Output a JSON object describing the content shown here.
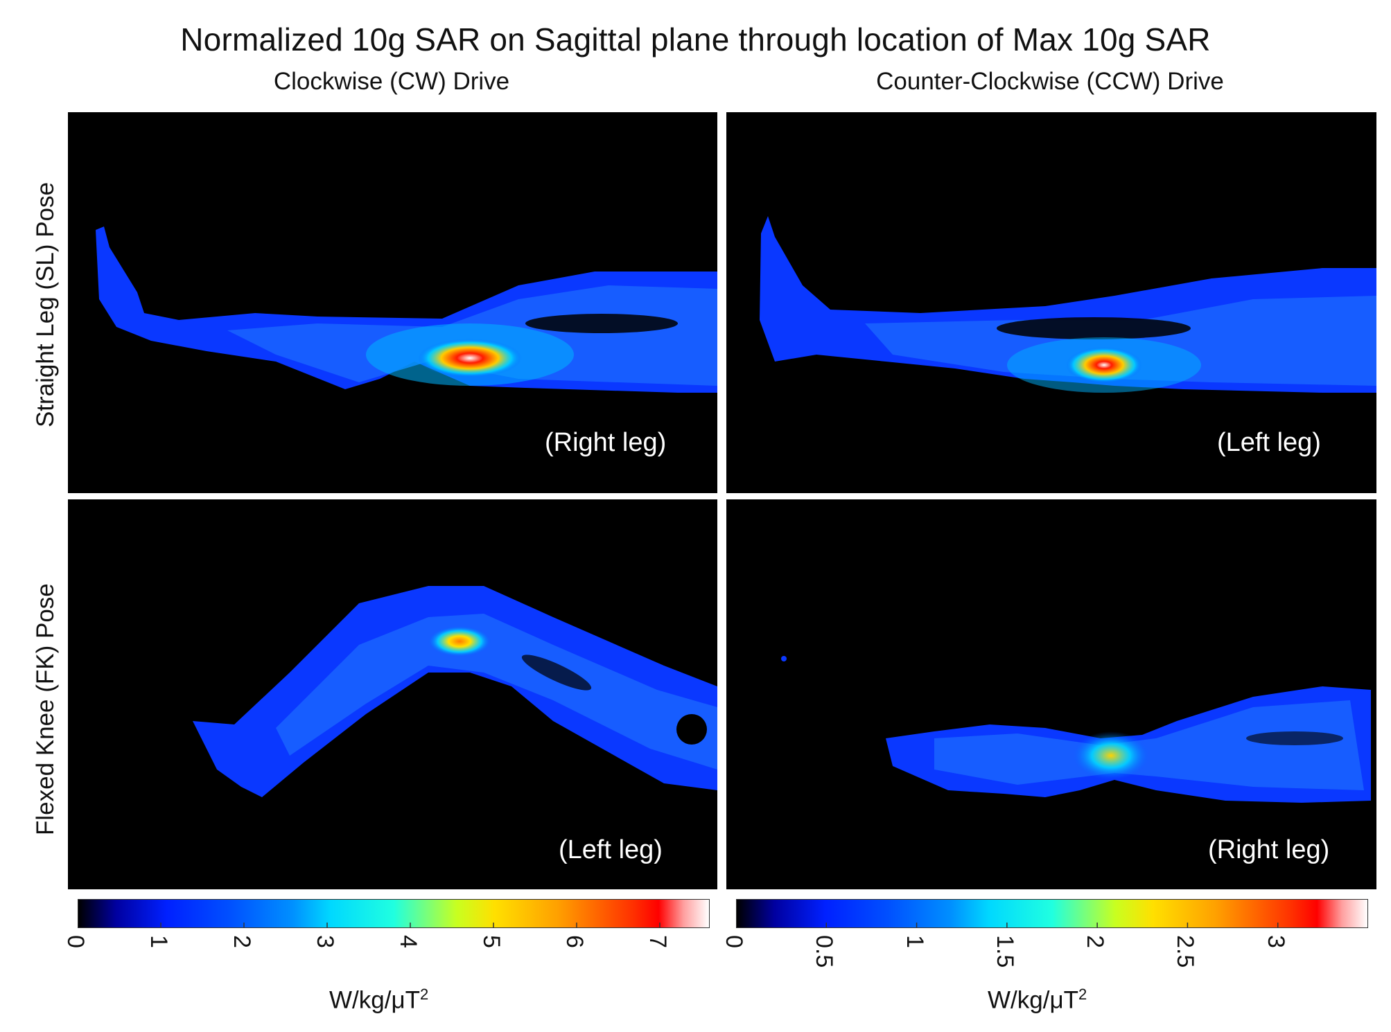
{
  "chart_data": {
    "type": "heatmap",
    "title": "Normalized 10g SAR on Sagittal plane through location of Max 10g SAR",
    "columns": [
      "Clockwise (CW) Drive",
      "Counter-Clockwise (CCW) Drive"
    ],
    "rows": [
      "Straight Leg (SL) Pose",
      "Flexed Knee (FK) Pose"
    ],
    "panels": [
      {
        "row": 0,
        "col": 0,
        "label": "(Right leg)"
      },
      {
        "row": 0,
        "col": 1,
        "label": "(Left leg)"
      },
      {
        "row": 1,
        "col": 0,
        "label": "(Left leg)"
      },
      {
        "row": 1,
        "col": 1,
        "label": "(Right leg)"
      }
    ],
    "colorbars": [
      {
        "column": 0,
        "unit": "W/kg/μT",
        "unit_exp": "2",
        "range": [
          0,
          7.6
        ],
        "ticks": [
          "0",
          "1",
          "2",
          "3",
          "4",
          "5",
          "6",
          "7"
        ],
        "tick_values": [
          0,
          1,
          2,
          3,
          4,
          5,
          6,
          7
        ]
      },
      {
        "column": 1,
        "unit": "W/kg/μT",
        "unit_exp": "2",
        "range": [
          0,
          3.5
        ],
        "ticks": [
          "0",
          "0.5",
          "1",
          "1.5",
          "2",
          "2.5",
          "3"
        ],
        "tick_values": [
          0,
          0.5,
          1,
          1.5,
          2,
          2.5,
          3
        ]
      }
    ],
    "colormap": "jet-to-white"
  }
}
